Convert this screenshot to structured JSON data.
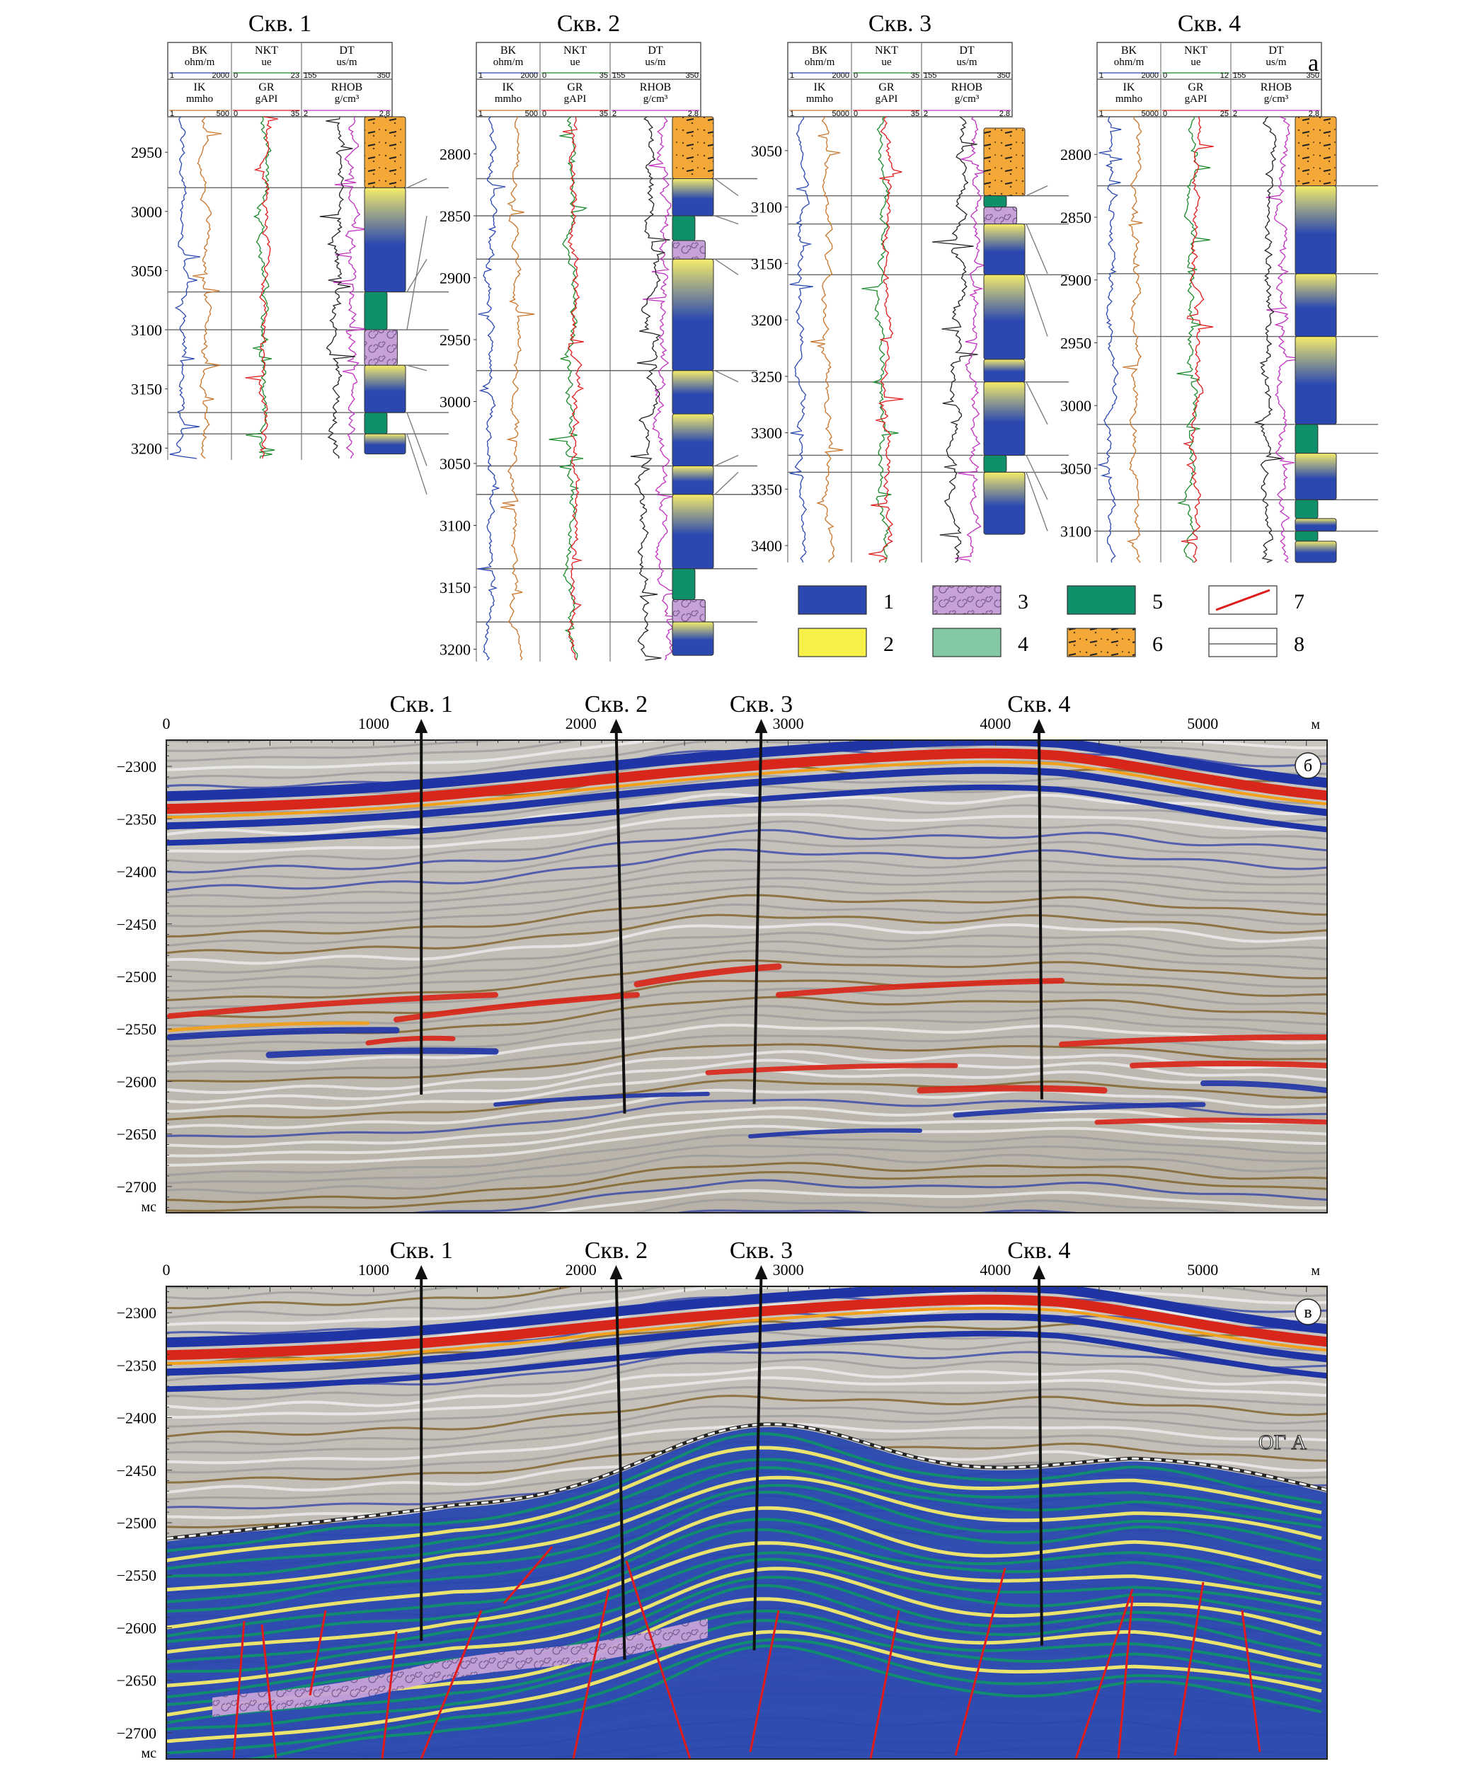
{
  "panel_a": {
    "label": "а",
    "header": {
      "row1": [
        {
          "name": "BK",
          "unit": "ohm/m"
        },
        {
          "name": "NKT",
          "unit": "ue"
        },
        {
          "name": "DT",
          "unit": "us/m"
        }
      ],
      "row2": [
        {
          "name": "IK",
          "unit": "mmho"
        },
        {
          "name": "GR",
          "unit": "gAPI"
        },
        {
          "name": "RHOB",
          "unit": "g/cm³"
        }
      ],
      "rhob_lo": "2",
      "rhob_hi": "2.8",
      "dt_lo": "155",
      "dt_hi": "350"
    },
    "wells": [
      {
        "title": "Скв. 1",
        "bk": [
          "1",
          "2000"
        ],
        "nkt": [
          "0",
          "23"
        ],
        "ik": [
          "1",
          "500"
        ],
        "gr": [
          "0",
          "35"
        ],
        "depth_ticks": [
          "2950",
          "3000",
          "3050",
          "3100",
          "3150",
          "3200"
        ]
      },
      {
        "title": "Скв. 2",
        "bk": [
          "1",
          "2000"
        ],
        "nkt": [
          "0",
          "35"
        ],
        "ik": [
          "1",
          "500"
        ],
        "gr": [
          "0",
          "35"
        ],
        "depth_ticks": [
          "2800",
          "2850",
          "2900",
          "2950",
          "3000",
          "3050",
          "3100",
          "3150",
          "3200"
        ]
      },
      {
        "title": "Скв. 3",
        "bk": [
          "1",
          "2000"
        ],
        "nkt": [
          "0",
          "35"
        ],
        "ik": [
          "1",
          "5000"
        ],
        "gr": [
          "0",
          "35"
        ],
        "depth_ticks": [
          "3050",
          "3100",
          "3150",
          "3200",
          "3250",
          "3300",
          "3350",
          "3400"
        ]
      },
      {
        "title": "Скв. 4",
        "bk": [
          "1",
          "2000"
        ],
        "nkt": [
          "0",
          "12"
        ],
        "ik": [
          "1",
          "5000"
        ],
        "gr": [
          "0",
          "25"
        ],
        "depth_ticks": [
          "2800",
          "2850",
          "2900",
          "2950",
          "3000",
          "3050",
          "3100"
        ]
      }
    ],
    "legend": [
      {
        "num": "1",
        "color": "#2a48b0",
        "kind": "box"
      },
      {
        "num": "2",
        "color": "#f7ef4a",
        "kind": "box"
      },
      {
        "num": "3",
        "color": "#c7a2d9",
        "kind": "spiral"
      },
      {
        "num": "4",
        "color": "#82c9a4",
        "kind": "box"
      },
      {
        "num": "5",
        "color": "#0f8f6a",
        "kind": "box"
      },
      {
        "num": "6",
        "color": "#f3a838",
        "kind": "dots"
      },
      {
        "num": "7",
        "color": "#e01b1b",
        "kind": "line"
      },
      {
        "num": "8",
        "color": "#666666",
        "kind": "hline"
      }
    ]
  },
  "panel_b": {
    "label": "б",
    "x_ticks": [
      "0",
      "1000",
      "2000",
      "3000",
      "4000",
      "5000"
    ],
    "x_unit": "м",
    "y_ticks": [
      "−2300",
      "−2350",
      "−2400",
      "−2450",
      "−2500",
      "−2550",
      "−2600",
      "−2650",
      "−2700"
    ],
    "y_unit": "мс",
    "wells": [
      {
        "label": "Скв. 1",
        "pos_m": 1230
      },
      {
        "label": "Скв. 2",
        "pos_m": 2170
      },
      {
        "label": "Скв. 3",
        "pos_m": 2870
      },
      {
        "label": "Скв. 4",
        "pos_m": 4210
      }
    ]
  },
  "panel_c": {
    "label": "в",
    "horizon_label": "ОГ А",
    "x_ticks": [
      "0",
      "1000",
      "2000",
      "3000",
      "4000",
      "5000"
    ],
    "x_unit": "м",
    "y_ticks": [
      "−2300",
      "−2350",
      "−2400",
      "−2450",
      "−2500",
      "−2550",
      "−2600",
      "−2650",
      "−2700"
    ],
    "y_unit": "мс"
  },
  "colors": {
    "blue": "#2a48b0",
    "yellow": "#f4ec6a",
    "green": "#0f8f6a",
    "light_green": "#82c9a4",
    "purple": "#c7a2d9",
    "orange": "#f3a838",
    "red": "#e01b1b",
    "seis_red": "#d8261a"
  }
}
